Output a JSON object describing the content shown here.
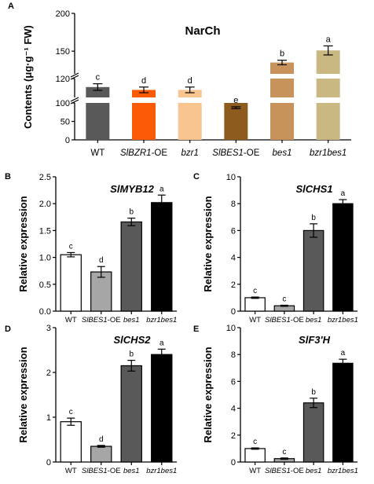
{
  "chart_data": [
    {
      "panel": "A",
      "type": "bar",
      "title": "NarCh",
      "ylabel": "Contents (μg·g⁻¹ FW)",
      "xlabel": "",
      "categories": [
        "WT",
        "SlBZR1-OE",
        "bzr1",
        "SlBES1-OE",
        "bes1",
        "bzr1bes1"
      ],
      "category_italic_parts": [
        [
          "WT",
          ""
        ],
        [
          "SlBZR1",
          "-OE"
        ],
        [
          "bzr1",
          ""
        ],
        [
          "SlBES1",
          "-OE"
        ],
        [
          "bes1",
          ""
        ],
        [
          "bzr1bes1",
          ""
        ]
      ],
      "values": [
        111,
        108,
        108,
        87,
        135,
        151
      ],
      "errors": [
        3.5,
        3,
        3,
        2.5,
        3,
        6
      ],
      "letters": [
        "c",
        "d",
        "d",
        "e",
        "b",
        "a"
      ],
      "colors": [
        "#595959",
        "#fb5a06",
        "#f8c591",
        "#8e5b1f",
        "#c8935b",
        "#c9b882"
      ],
      "yticks": [
        "0",
        "50",
        "100",
        "120",
        "150",
        "200"
      ],
      "axis_break": true,
      "grid": false
    },
    {
      "panel": "B",
      "type": "bar",
      "title": "SlMYB12",
      "ylabel": "Relative expression",
      "categories": [
        "WT",
        "SlBES1-OE",
        "bes1",
        "bzr1bes1"
      ],
      "category_italic_parts": [
        [
          "WT",
          ""
        ],
        [
          "SlBES1",
          "-OE"
        ],
        [
          "bes1",
          ""
        ],
        [
          "bzr1bes1",
          ""
        ]
      ],
      "values": [
        1.05,
        0.73,
        1.66,
        2.02
      ],
      "errors": [
        0.04,
        0.1,
        0.07,
        0.14
      ],
      "letters": [
        "c",
        "d",
        "b",
        "a"
      ],
      "colors": [
        "#ffffff",
        "#a6a6a6",
        "#595959",
        "#000000"
      ],
      "ylim": [
        0,
        2.5
      ],
      "yticks": [
        "0.0",
        "0.5",
        "1.0",
        "1.5",
        "2.0",
        "2.5"
      ],
      "grid": false
    },
    {
      "panel": "C",
      "type": "bar",
      "title": "SlCHS1",
      "ylabel": "Relative expression",
      "categories": [
        "WT",
        "SlBES1-OE",
        "bes1",
        "bzr1bes1"
      ],
      "category_italic_parts": [
        [
          "WT",
          ""
        ],
        [
          "SlBES1",
          "-OE"
        ],
        [
          "bes1",
          ""
        ],
        [
          "bzr1bes1",
          ""
        ]
      ],
      "values": [
        1.0,
        0.4,
        6.0,
        8.0
      ],
      "errors": [
        0.05,
        0.04,
        0.5,
        0.3
      ],
      "letters": [
        "c",
        "c",
        "b",
        "a"
      ],
      "colors": [
        "#ffffff",
        "#a6a6a6",
        "#595959",
        "#000000"
      ],
      "ylim": [
        0,
        10
      ],
      "yticks": [
        "0",
        "2",
        "4",
        "6",
        "8",
        "10"
      ],
      "grid": false
    },
    {
      "panel": "D",
      "type": "bar",
      "title": "SlCHS2",
      "ylabel": "Relative expression",
      "categories": [
        "WT",
        "SlBES1-OE",
        "bes1",
        "bzr1bes1"
      ],
      "category_italic_parts": [
        [
          "WT",
          ""
        ],
        [
          "SlBES1",
          "-OE"
        ],
        [
          "bes1",
          ""
        ],
        [
          "bzr1bes1",
          ""
        ]
      ],
      "values": [
        0.9,
        0.35,
        2.15,
        2.4
      ],
      "errors": [
        0.08,
        0.02,
        0.12,
        0.12
      ],
      "letters": [
        "c",
        "d",
        "b",
        "a"
      ],
      "colors": [
        "#ffffff",
        "#a6a6a6",
        "#595959",
        "#000000"
      ],
      "ylim": [
        0,
        3
      ],
      "yticks": [
        "0",
        "1",
        "2",
        "3"
      ],
      "grid": false
    },
    {
      "panel": "E",
      "type": "bar",
      "title": "SlF3'H",
      "ylabel": "Relative expression",
      "categories": [
        "WT",
        "SlBES1-OE",
        "bes1",
        "bzr1bes1"
      ],
      "category_italic_parts": [
        [
          "WT",
          ""
        ],
        [
          "SlBES1",
          "-OE"
        ],
        [
          "bes1",
          ""
        ],
        [
          "bzr1bes1",
          ""
        ]
      ],
      "values": [
        1.0,
        0.25,
        4.4,
        7.35
      ],
      "errors": [
        0.05,
        0.05,
        0.35,
        0.3
      ],
      "letters": [
        "c",
        "c",
        "b",
        "a"
      ],
      "colors": [
        "#ffffff",
        "#a6a6a6",
        "#595959",
        "#000000"
      ],
      "ylim": [
        0,
        10
      ],
      "yticks": [
        "0",
        "2",
        "4",
        "6",
        "8",
        "10"
      ],
      "grid": false
    }
  ]
}
